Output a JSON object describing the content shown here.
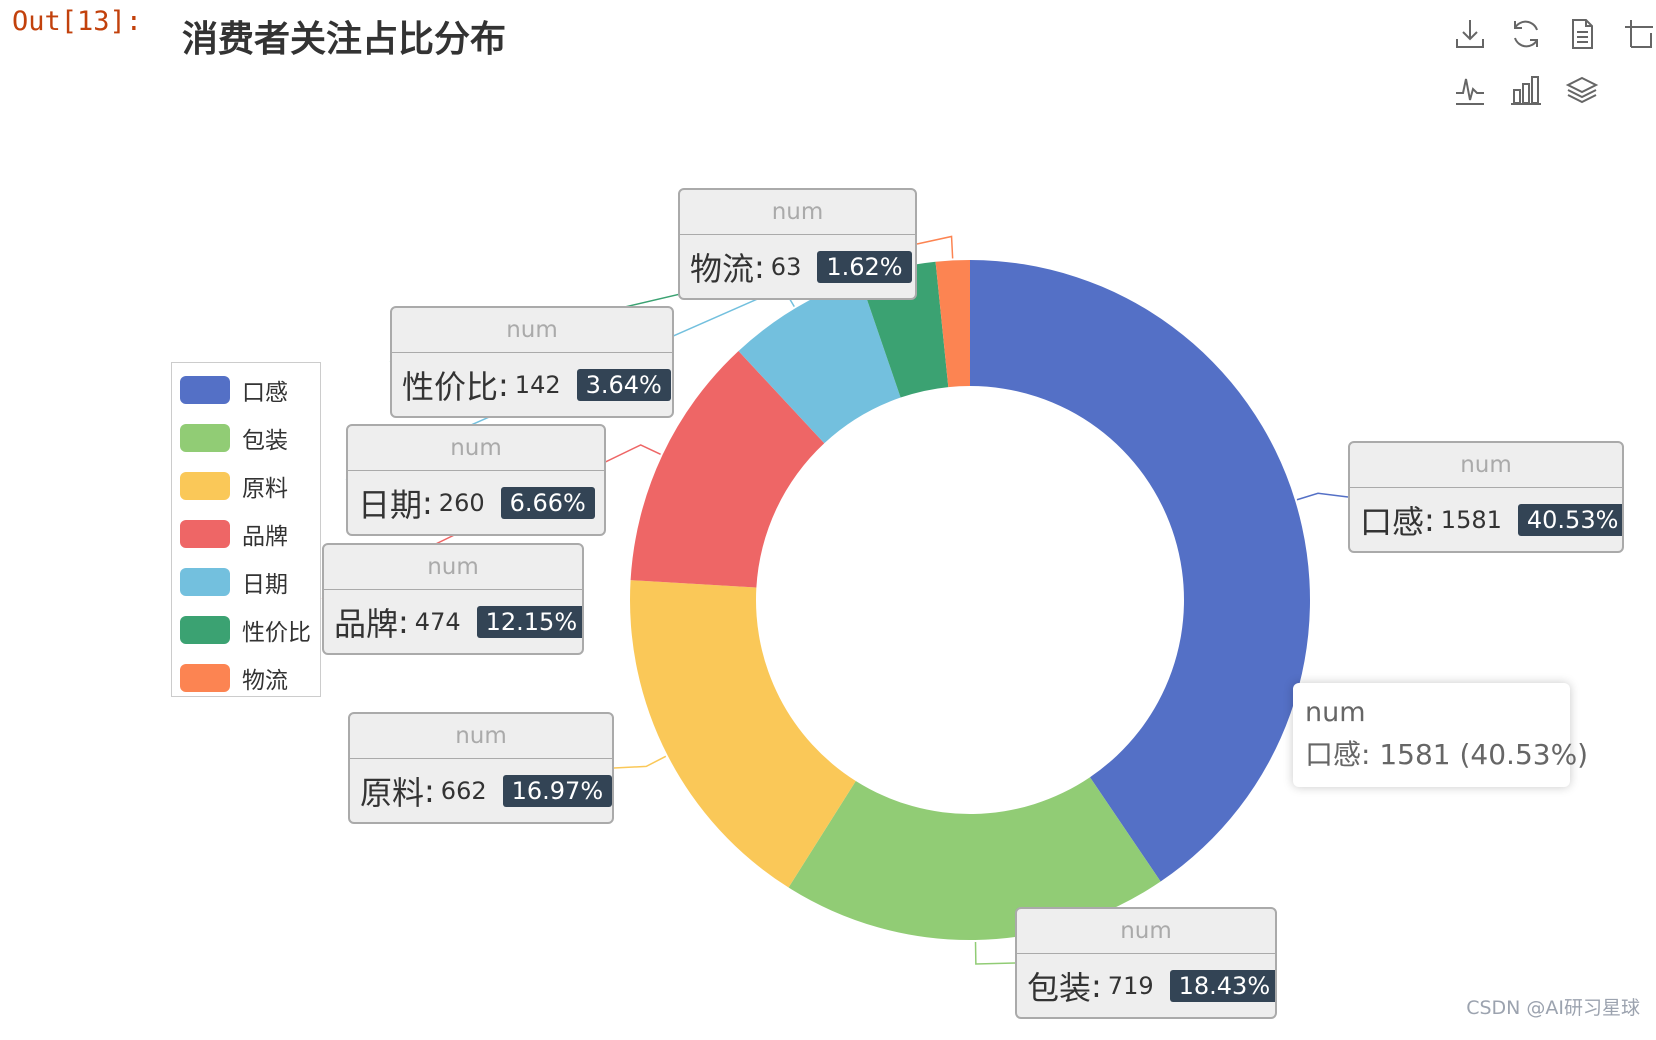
{
  "prompt": "Out[13]:",
  "watermark": "CSDN @AI研习星球",
  "colors": [
    "#5470c6",
    "#91cc75",
    "#fac858",
    "#ee6666",
    "#73c0de",
    "#3ba272",
    "#fc8452"
  ],
  "toolbox": [
    {
      "icon": "download-icon"
    },
    {
      "icon": "refresh-icon"
    },
    {
      "icon": "data-view-icon"
    },
    {
      "icon": "zoom-icon"
    },
    {
      "icon": "line-chart-icon"
    },
    {
      "icon": "bar-chart-icon"
    },
    {
      "icon": "stack-icon"
    }
  ],
  "chart_data": {
    "type": "pie",
    "title": "消费者关注占比分布",
    "series_name": "num",
    "legend_position": "left",
    "inner_radius_ratio": 0.63,
    "categories": [
      "口感",
      "包装",
      "原料",
      "品牌",
      "日期",
      "性价比",
      "物流"
    ],
    "values": [
      1581,
      719,
      662,
      474,
      260,
      142,
      63
    ],
    "percents": [
      "40.53%",
      "18.43%",
      "16.97%",
      "12.15%",
      "6.66%",
      "3.64%",
      "1.62%"
    ],
    "tooltip": {
      "title": "num",
      "text": "口感: 1581 (40.53%)"
    }
  }
}
